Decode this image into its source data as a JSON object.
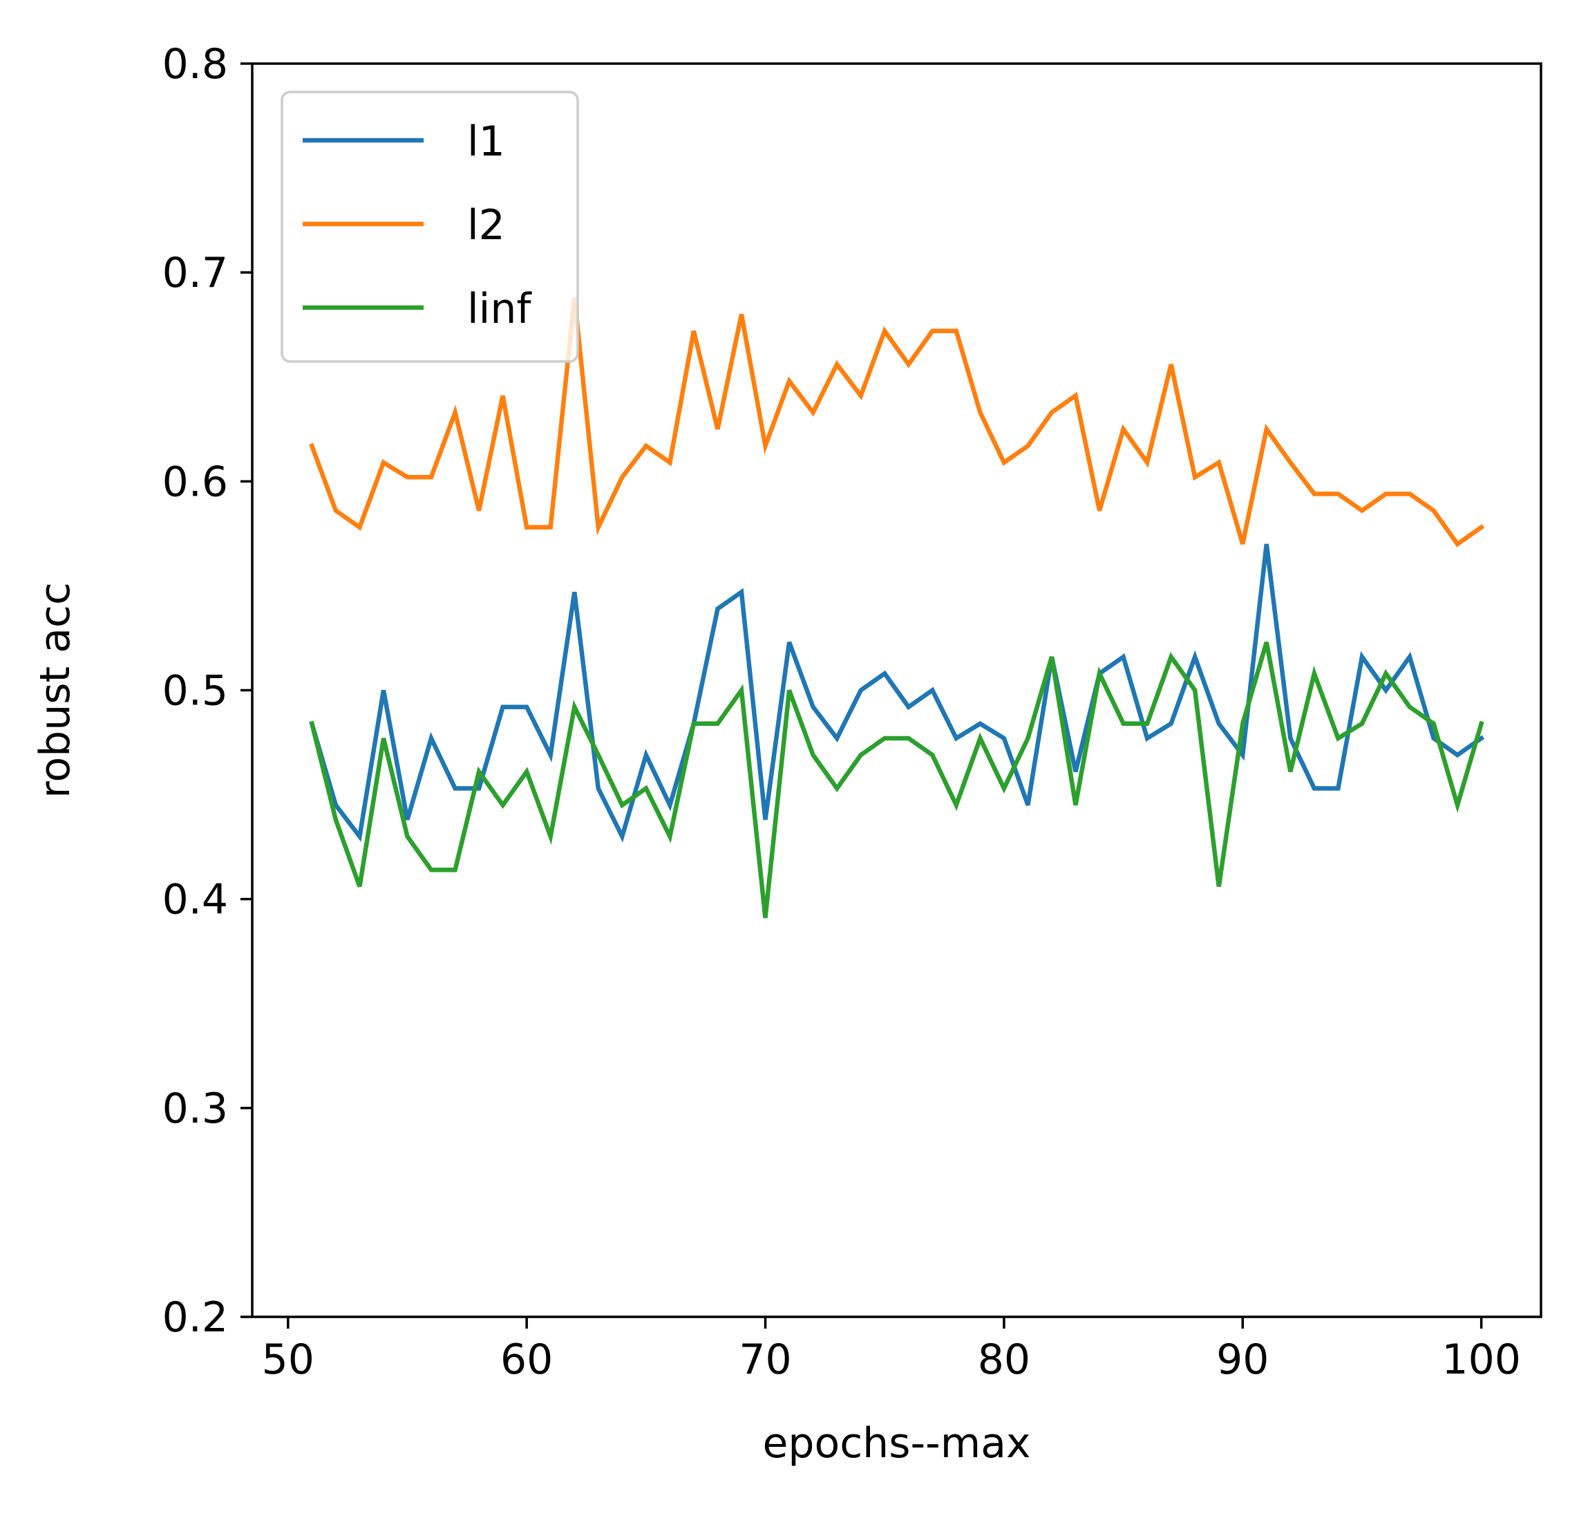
{
  "chart_data": {
    "type": "line",
    "title": "",
    "xlabel": "epochs--max",
    "ylabel": "robust acc",
    "xlim": [
      48.5,
      102.5
    ],
    "ylim": [
      0.2,
      0.8
    ],
    "xticks": [
      50,
      60,
      70,
      80,
      90,
      100
    ],
    "xtick_labels": [
      "50",
      "60",
      "70",
      "80",
      "90",
      "100"
    ],
    "yticks": [
      0.2,
      0.3,
      0.4,
      0.5,
      0.6,
      0.7,
      0.8
    ],
    "ytick_labels": [
      "0.2",
      "0.3",
      "0.4",
      "0.5",
      "0.6",
      "0.7",
      "0.8"
    ],
    "grid": false,
    "legend_position": "upper-left",
    "x": [
      51,
      52,
      53,
      54,
      55,
      56,
      57,
      58,
      59,
      60,
      61,
      62,
      63,
      64,
      65,
      66,
      67,
      68,
      69,
      70,
      71,
      72,
      73,
      74,
      75,
      76,
      77,
      78,
      79,
      80,
      81,
      82,
      83,
      84,
      85,
      86,
      87,
      88,
      89,
      90,
      91,
      92,
      93,
      94,
      95,
      96,
      97,
      98,
      99,
      100
    ],
    "series": [
      {
        "name": "l1",
        "color": "#1f77b4",
        "values": [
          0.484,
          0.445,
          0.43,
          0.5,
          0.438,
          0.477,
          0.453,
          0.453,
          0.492,
          0.492,
          0.469,
          0.547,
          0.453,
          0.43,
          0.469,
          0.445,
          0.484,
          0.539,
          0.547,
          0.438,
          0.523,
          0.492,
          0.477,
          0.5,
          0.508,
          0.492,
          0.5,
          0.477,
          0.484,
          0.477,
          0.445,
          0.516,
          0.461,
          0.508,
          0.516,
          0.477,
          0.484,
          0.516,
          0.484,
          0.469,
          0.57,
          0.477,
          0.453,
          0.453,
          0.516,
          0.5,
          0.516,
          0.477,
          0.469,
          0.477
        ]
      },
      {
        "name": "l2",
        "color": "#ff7f0e",
        "values": [
          0.617,
          0.586,
          0.578,
          0.609,
          0.602,
          0.602,
          0.633,
          0.586,
          0.641,
          0.578,
          0.578,
          0.688,
          0.578,
          0.602,
          0.617,
          0.609,
          0.672,
          0.625,
          0.68,
          0.617,
          0.648,
          0.633,
          0.656,
          0.641,
          0.672,
          0.656,
          0.672,
          0.672,
          0.633,
          0.609,
          0.617,
          0.633,
          0.641,
          0.586,
          0.625,
          0.609,
          0.656,
          0.602,
          0.609,
          0.57,
          0.625,
          0.609,
          0.594,
          0.594,
          0.586,
          0.594,
          0.594,
          0.586,
          0.57,
          0.578
        ]
      },
      {
        "name": "linf",
        "color": "#2ca02c",
        "values": [
          0.484,
          0.438,
          0.406,
          0.477,
          0.43,
          0.414,
          0.414,
          0.461,
          0.445,
          0.461,
          0.43,
          0.492,
          0.469,
          0.445,
          0.453,
          0.43,
          0.484,
          0.484,
          0.5,
          0.391,
          0.5,
          0.469,
          0.453,
          0.469,
          0.477,
          0.477,
          0.469,
          0.445,
          0.477,
          0.453,
          0.477,
          0.516,
          0.445,
          0.508,
          0.484,
          0.484,
          0.516,
          0.5,
          0.406,
          0.484,
          0.523,
          0.461,
          0.508,
          0.477,
          0.484,
          0.508,
          0.492,
          0.484,
          0.445,
          0.484
        ]
      }
    ]
  }
}
